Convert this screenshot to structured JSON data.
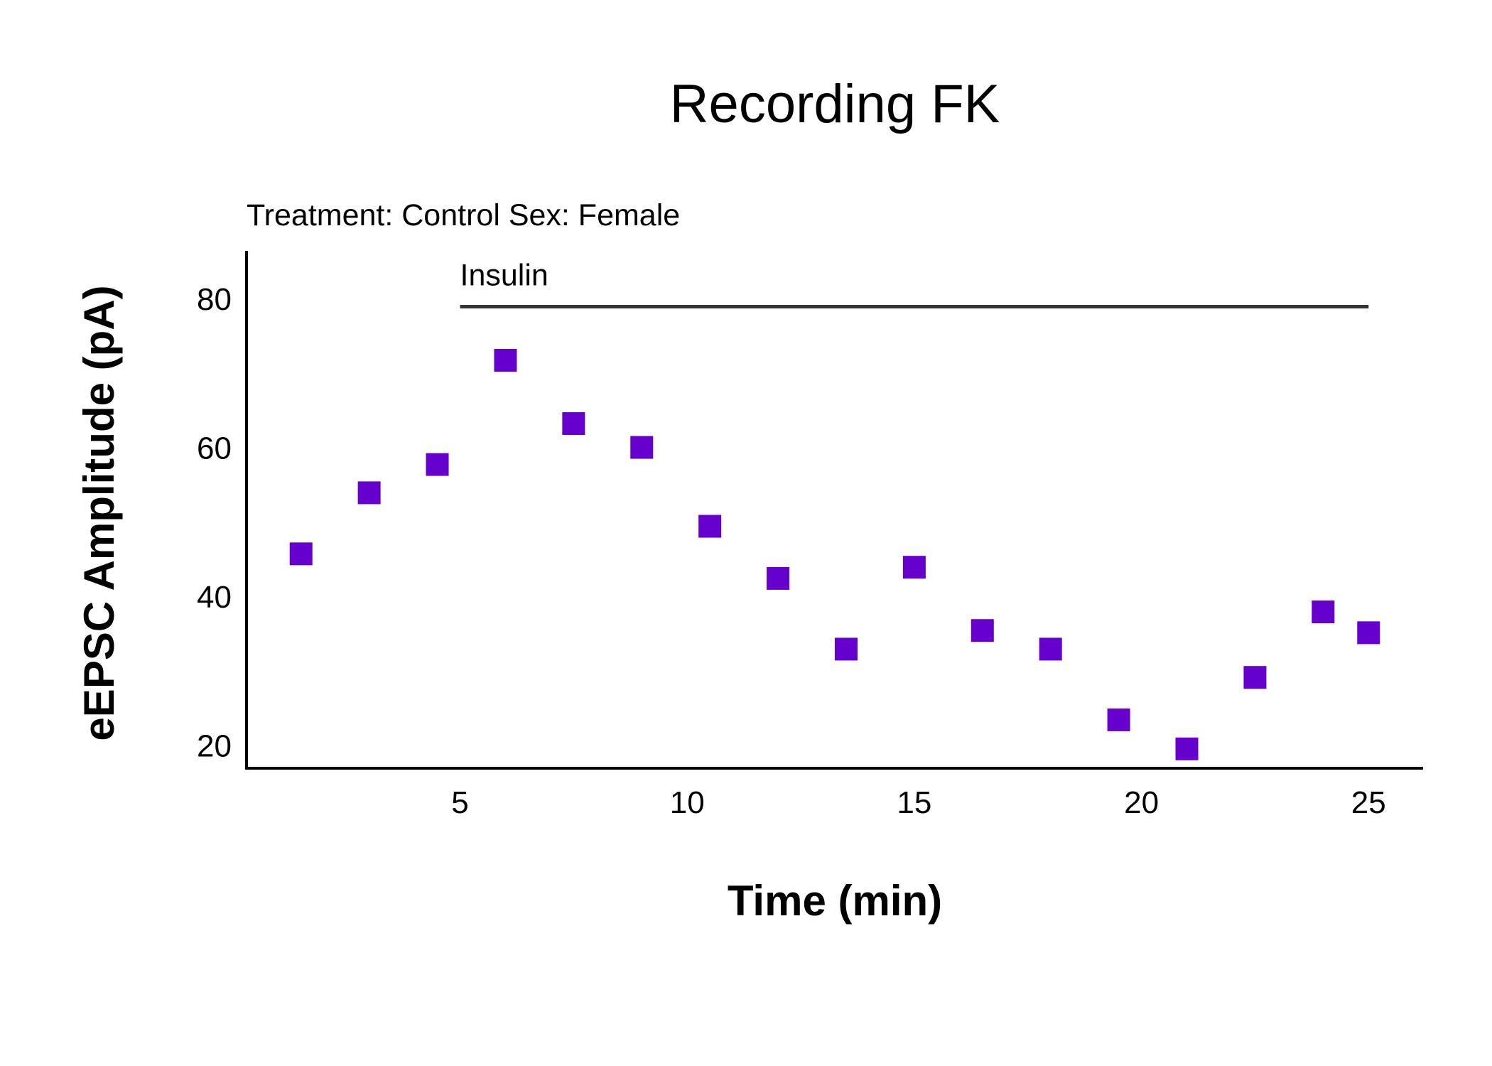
{
  "chart_data": {
    "type": "scatter",
    "title": "Recording FK",
    "subtitle": "Treatment: Control  Sex: Female",
    "xlabel": "Time (min)",
    "ylabel": "eEPSC Amplitude (pA)",
    "xlim": [
      0.3,
      26.2
    ],
    "ylim": [
      17,
      86.5
    ],
    "xticks": [
      5,
      10,
      15,
      20,
      25
    ],
    "yticks": [
      20,
      40,
      60,
      80
    ],
    "grid": false,
    "marker": "square",
    "marker_color": "#6600CC",
    "annotation": {
      "label": "Insulin",
      "x_start": 5,
      "x_end": 25,
      "y": 79,
      "color": "#333333"
    },
    "series": [
      {
        "x": [
          1.5,
          3,
          4.5,
          6,
          7.5,
          9,
          10.5,
          12,
          13.5,
          15,
          16.5,
          18,
          19.5,
          21,
          22.5,
          24,
          25
        ],
        "y": [
          45.8,
          54.0,
          57.8,
          71.8,
          63.3,
          60.1,
          49.5,
          42.5,
          33.0,
          44.0,
          35.5,
          33.0,
          23.5,
          19.6,
          29.2,
          38.0,
          35.2
        ]
      }
    ]
  }
}
